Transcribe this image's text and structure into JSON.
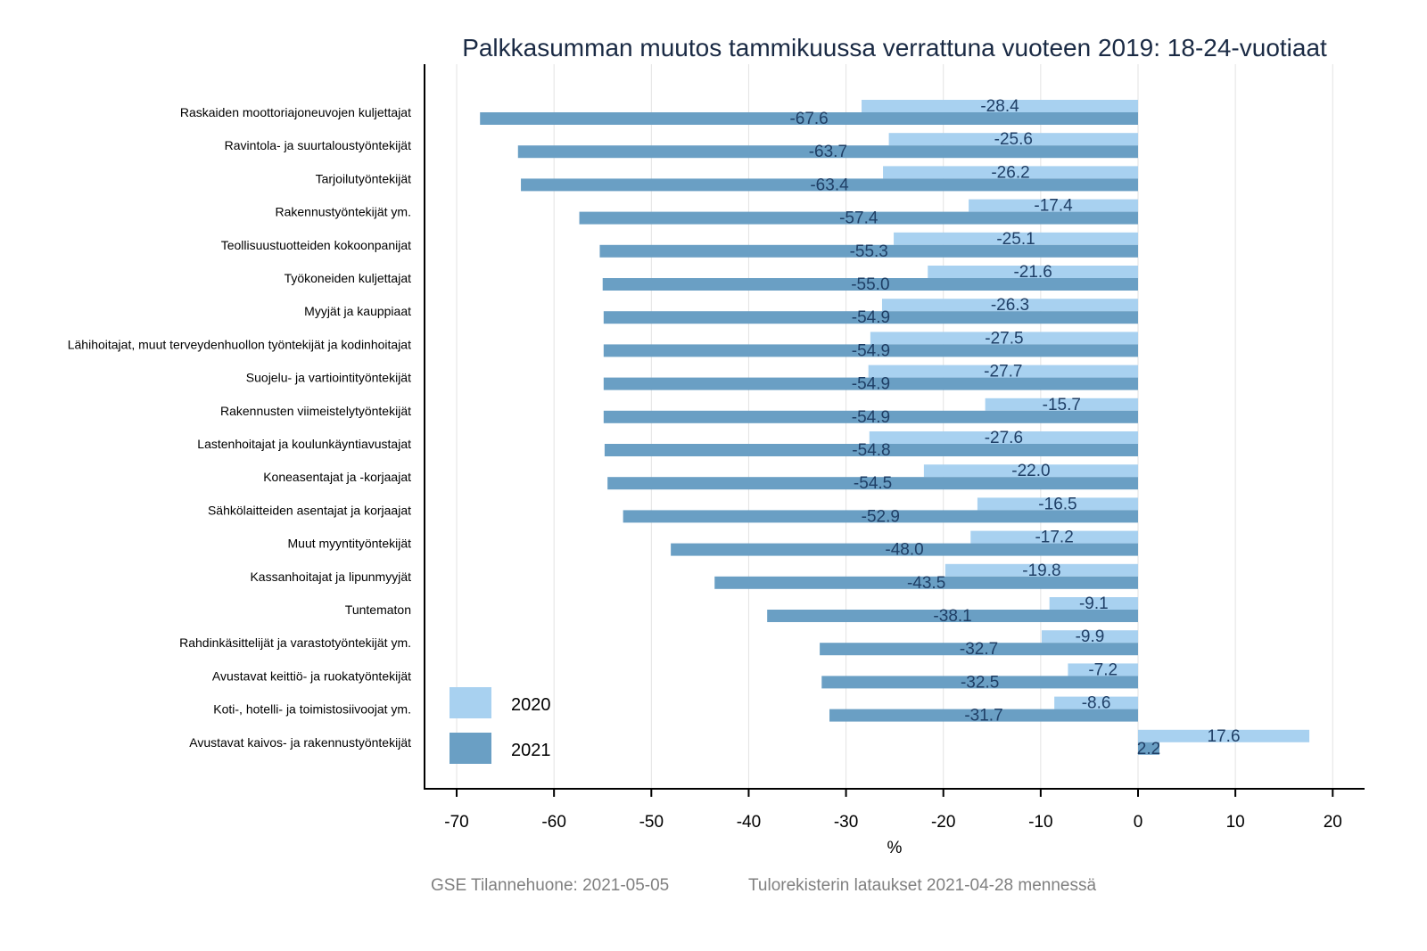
{
  "chart_data": {
    "type": "bar",
    "orientation": "horizontal",
    "title": "Palkkasumman muutos tammikuussa verrattuna vuoteen 2019: 18-24-vuotiaat",
    "xlabel": "%",
    "ylabel": "",
    "xlim": [
      -73,
      23
    ],
    "xticks": [
      -70,
      -60,
      -50,
      -40,
      -30,
      -20,
      -10,
      0,
      10,
      20
    ],
    "grid": true,
    "legend_position": "bottom-left",
    "categories": [
      "Raskaiden moottoriajoneuvojen kuljettajat",
      "Ravintola- ja suurtaloustyöntekijät",
      "Tarjoilutyöntekijät",
      "Rakennustyöntekijät ym.",
      "Teollisuustuotteiden kokoonpanijat",
      "Työkoneiden kuljettajat",
      "Myyjät ja kauppiaat",
      "Lähihoitajat, muut terveydenhuollon työntekijät ja kodinhoitajat",
      "Suojelu- ja vartiointityöntekijät",
      "Rakennusten viimeistelytyöntekijät",
      "Lastenhoitajat ja koulunkäyntiavustajat",
      "Koneasentajat ja -korjaajat",
      "Sähkölaitteiden asentajat ja korjaajat",
      "Muut myyntityöntekijät",
      "Kassanhoitajat ja lipunmyyjät",
      "Tuntematon",
      "Rahdinkäsittelijät ja varastotyöntekijät ym.",
      "Avustavat keittiö- ja ruokatyöntekijät",
      "Koti-, hotelli- ja toimistosiivoojat ym.",
      "Avustavat kaivos- ja rakennustyöntekijät"
    ],
    "series": [
      {
        "name": "2020",
        "color": "#a8d1f0",
        "values": [
          -28.4,
          -25.6,
          -26.2,
          -17.4,
          -25.1,
          -21.6,
          -26.3,
          -27.5,
          -27.7,
          -15.7,
          -27.6,
          -22.0,
          -16.5,
          -17.2,
          -19.8,
          -9.1,
          -9.9,
          -7.2,
          -8.6,
          17.6
        ]
      },
      {
        "name": "2021",
        "color": "#6a9fc4",
        "values": [
          -67.6,
          -63.7,
          -63.4,
          -57.4,
          -55.3,
          -55.0,
          -54.9,
          -54.9,
          -54.9,
          -54.9,
          -54.8,
          -54.5,
          -52.9,
          -48.0,
          -43.5,
          -38.1,
          -32.7,
          -32.5,
          -31.7,
          2.2
        ]
      }
    ],
    "label_color": "#1f3f66"
  },
  "footer": {
    "source": "GSE Tilannehuone: 2021-05-05",
    "note": "Tulorekisterin lataukset 2021-04-28 mennessä"
  }
}
